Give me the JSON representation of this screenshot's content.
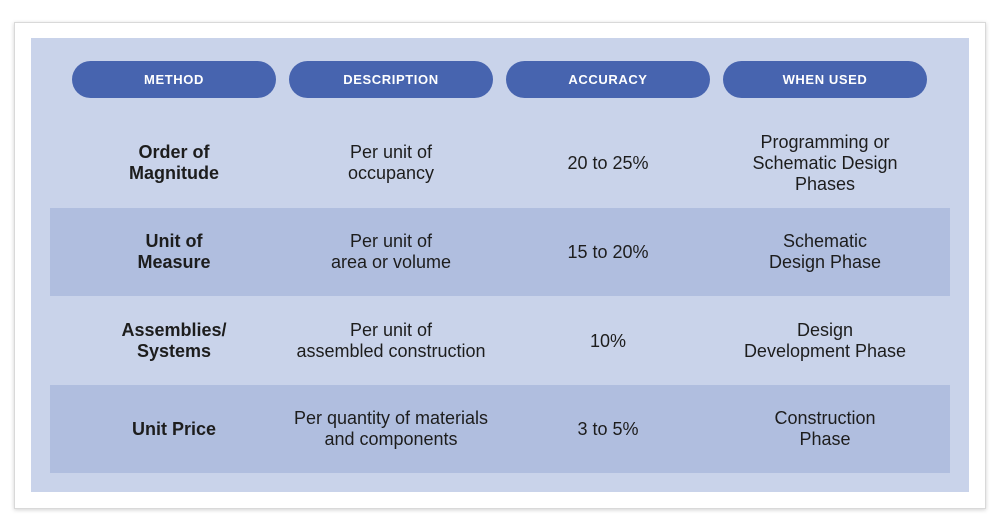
{
  "table": {
    "headers": [
      "METHOD",
      "DESCRIPTION",
      "ACCURACY",
      "WHEN USED"
    ],
    "rows": [
      {
        "method": "Order of\nMagnitude",
        "description": "Per unit of\noccupancy",
        "accuracy": "20 to 25%",
        "when_used": "Programming or\nSchematic Design\nPhases"
      },
      {
        "method": "Unit of\nMeasure",
        "description": "Per unit of\narea or volume",
        "accuracy": "15 to 20%",
        "when_used": "Schematic\nDesign Phase"
      },
      {
        "method": "Assemblies/\nSystems",
        "description": "Per unit of\nassembled construction",
        "accuracy": "10%",
        "when_used": "Design\nDevelopment Phase"
      },
      {
        "method": "Unit Price",
        "description": "Per quantity of materials\nand components",
        "accuracy": "3 to 5%",
        "when_used": "Construction\nPhase"
      }
    ]
  },
  "colors": {
    "panel_background": "#c9d3ea",
    "shaded_row": "#b0bedf",
    "header_pill": "#4764af",
    "header_text": "#ffffff",
    "body_text": "#1d1d1d"
  }
}
